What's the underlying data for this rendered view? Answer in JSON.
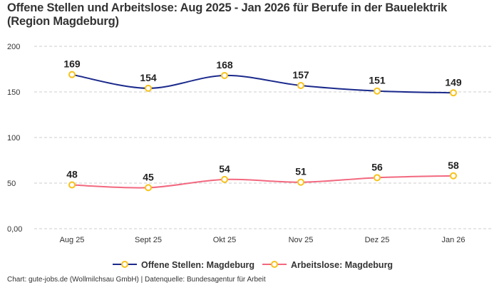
{
  "chart_data": {
    "type": "line",
    "title": "Offene Stellen und Arbeitslose: Aug 2025 - Jan 2026 für Berufe in der Bauelektrik (Region Magdeburg)",
    "categories": [
      "Aug 25",
      "Sept 25",
      "Okt 25",
      "Nov 25",
      "Dez 25",
      "Jan 26"
    ],
    "series": [
      {
        "name": "Offene Stellen: Magdeburg",
        "values": [
          169,
          154,
          168,
          157,
          151,
          149
        ],
        "color": "#1b2a8c"
      },
      {
        "name": "Arbeitslose: Magdeburg",
        "values": [
          48,
          45,
          54,
          51,
          56,
          58
        ],
        "color": "#f2687f"
      }
    ],
    "marker_color": "#f7c21b",
    "yticks": [
      "0,00",
      "50",
      "100",
      "150",
      "200"
    ],
    "ylim": [
      0,
      200
    ],
    "grid": true,
    "legend": "bottom",
    "xlabel": "",
    "ylabel": ""
  },
  "footer": "Chart: gute-jobs.de (Wollmilchsau GmbH) | Datenquelle: Bundesagentur für Arbeit"
}
